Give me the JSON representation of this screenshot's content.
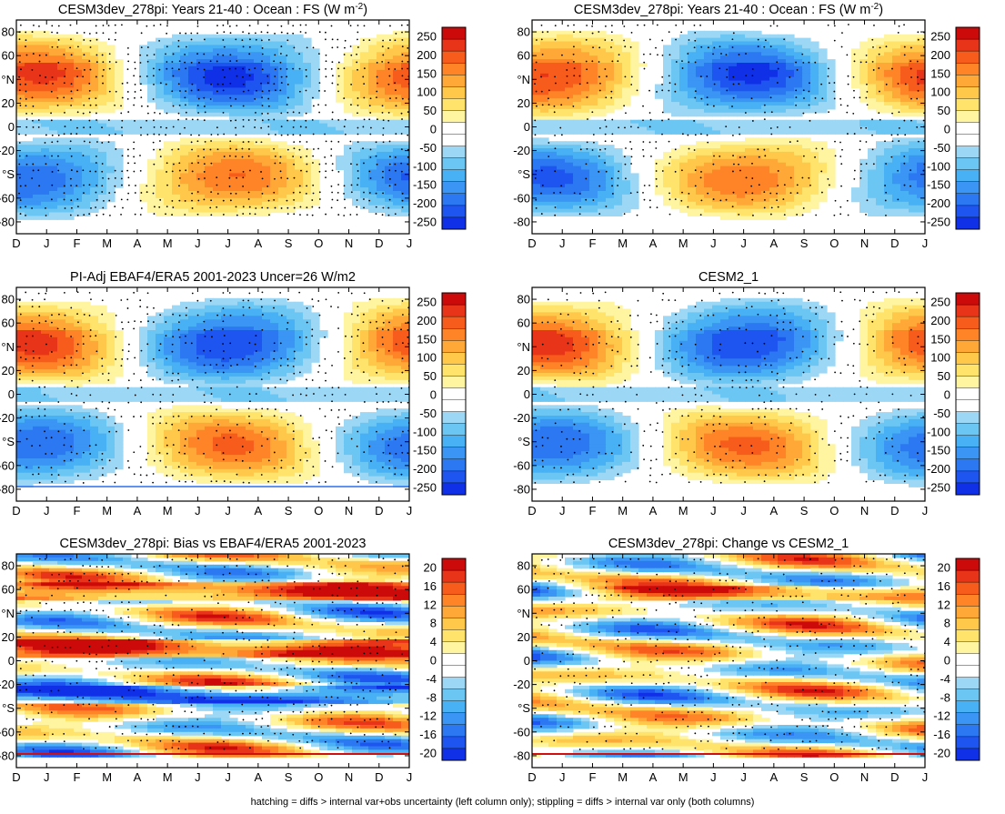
{
  "footnote": "hatching = diffs > internal var+obs uncertainty (left column only); stippling = diffs > internal var only (both columns)",
  "colors": {
    "abs_scale": [
      "#1030e8",
      "#1e55f0",
      "#2c78f2",
      "#3a95f4",
      "#48b0f4",
      "#6cc6f4",
      "#9cd8f6",
      "#ffffff",
      "#ffffff",
      "#fff4a0",
      "#ffe36a",
      "#ffc84a",
      "#ffa838",
      "#ff8428",
      "#f85c1c",
      "#e83418",
      "#cc0a0a"
    ],
    "diff_scale": [
      "#1030e8",
      "#1e55f0",
      "#2c78f2",
      "#3a95f4",
      "#48b0f4",
      "#6cc6f4",
      "#9cd8f6",
      "#ffffff",
      "#ffffff",
      "#fff4a0",
      "#ffe36a",
      "#ffc84a",
      "#ffa838",
      "#ff8428",
      "#f85c1c",
      "#e83418",
      "#cc0a0a"
    ]
  },
  "chart_data": [
    {
      "id": "p1",
      "type": "heatmap",
      "title": "CESM3dev_278pi: Years 21-40 : Ocean : FS (W m",
      "title_sup": "-2",
      "title_tail": ")",
      "x_ticks": [
        "D",
        "J",
        "F",
        "M",
        "A",
        "M",
        "J",
        "J",
        "A",
        "S",
        "O",
        "N",
        "D",
        "J"
      ],
      "y_ticks": [
        "80",
        "60",
        "°N",
        "20",
        "0",
        "-20",
        "°S",
        "-60",
        "-80"
      ],
      "y_range": [
        -90,
        90
      ],
      "colorbar": [
        "250",
        "200",
        "150",
        "100",
        "50",
        "0",
        "-50",
        "-100",
        "-150",
        "-200",
        "-250"
      ],
      "field": "abs",
      "seed": 3,
      "stipple": 0.55
    },
    {
      "id": "p2",
      "type": "heatmap",
      "title": "CESM3dev_278pi: Years 21-40 : Ocean : FS (W m",
      "title_sup": "-2",
      "title_tail": ")",
      "x_ticks": [
        "D",
        "J",
        "F",
        "M",
        "A",
        "M",
        "J",
        "J",
        "A",
        "S",
        "O",
        "N",
        "D",
        "J"
      ],
      "y_ticks": [
        "80",
        "60",
        "°N",
        "20",
        "0",
        "-20",
        "°S",
        "-60",
        "-80"
      ],
      "y_range": [
        -90,
        90
      ],
      "colorbar": [
        "250",
        "200",
        "150",
        "100",
        "50",
        "0",
        "-50",
        "-100",
        "-150",
        "-200",
        "-250"
      ],
      "field": "abs",
      "seed": 7,
      "stipple": 0.3
    },
    {
      "id": "p3",
      "type": "heatmap",
      "title": "PI-Adj EBAF4/ERA5 2001-2023 Uncer=26 W/m2",
      "title_sup": "",
      "title_tail": "",
      "x_ticks": [
        "D",
        "J",
        "F",
        "M",
        "A",
        "M",
        "J",
        "J",
        "A",
        "S",
        "O",
        "N",
        "D",
        "J"
      ],
      "y_ticks": [
        "80",
        "60",
        "°N",
        "20",
        "0",
        "-20",
        "°S",
        "-60",
        "-80"
      ],
      "y_range": [
        -90,
        90
      ],
      "colorbar": [
        "250",
        "200",
        "150",
        "100",
        "50",
        "0",
        "-50",
        "-100",
        "-150",
        "-200",
        "-250"
      ],
      "field": "abs",
      "seed": 11,
      "stipple": 0.35
    },
    {
      "id": "p4",
      "type": "heatmap",
      "title": "CESM2_1",
      "title_sup": "",
      "title_tail": "",
      "x_ticks": [
        "D",
        "J",
        "F",
        "M",
        "A",
        "M",
        "J",
        "J",
        "A",
        "S",
        "O",
        "N",
        "D",
        "J"
      ],
      "y_ticks": [
        "80",
        "60",
        "°N",
        "20",
        "0",
        "-20",
        "°S",
        "-60",
        "-80"
      ],
      "y_range": [
        -90,
        90
      ],
      "colorbar": [
        "250",
        "200",
        "150",
        "100",
        "50",
        "0",
        "-50",
        "-100",
        "-150",
        "-200",
        "-250"
      ],
      "field": "abs",
      "seed": 5,
      "stipple": 0.3
    },
    {
      "id": "p5",
      "type": "heatmap",
      "title": "CESM3dev_278pi: Bias vs EBAF4/ERA5 2001-2023",
      "title_sup": "",
      "title_tail": "",
      "x_ticks": [
        "D",
        "J",
        "F",
        "M",
        "A",
        "M",
        "J",
        "J",
        "A",
        "S",
        "O",
        "N",
        "D",
        "J"
      ],
      "y_ticks": [
        "80",
        "60",
        "°N",
        "20",
        "0",
        "-20",
        "°S",
        "-60",
        "-80"
      ],
      "y_range": [
        -90,
        90
      ],
      "colorbar": [
        "20",
        "16",
        "12",
        "8",
        "4",
        "0",
        "-4",
        "-8",
        "-12",
        "-16",
        "-20"
      ],
      "field": "bias",
      "seed": 13,
      "stipple": 0.35
    },
    {
      "id": "p6",
      "type": "heatmap",
      "title": "CESM3dev_278pi: Change vs CESM2_1",
      "title_sup": "",
      "title_tail": "",
      "x_ticks": [
        "D",
        "J",
        "F",
        "M",
        "A",
        "M",
        "J",
        "J",
        "A",
        "S",
        "O",
        "N",
        "D",
        "J"
      ],
      "y_ticks": [
        "80",
        "60",
        "°N",
        "20",
        "0",
        "-20",
        "°S",
        "-60",
        "-80"
      ],
      "y_range": [
        -90,
        90
      ],
      "colorbar": [
        "20",
        "16",
        "12",
        "8",
        "4",
        "0",
        "-4",
        "-8",
        "-12",
        "-16",
        "-20"
      ],
      "field": "change",
      "seed": 17,
      "stipple": 0.3
    }
  ]
}
